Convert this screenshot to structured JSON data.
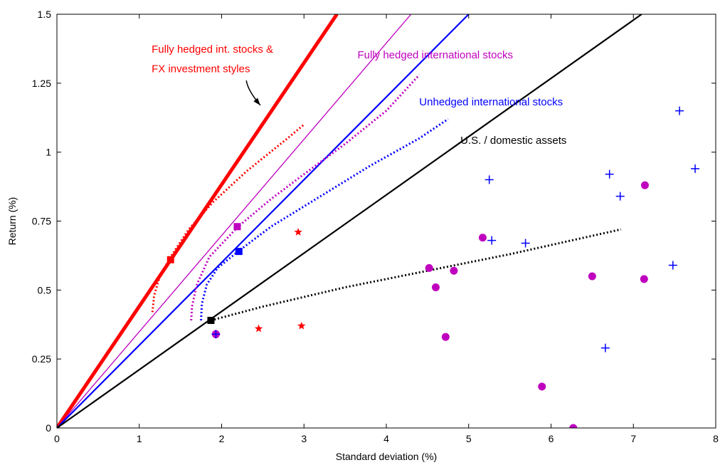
{
  "chart_data": {
    "type": "line",
    "xlabel": "Standard deviation (%)",
    "ylabel": "Return (%)",
    "xlim": [
      0,
      8
    ],
    "ylim": [
      0,
      1.5
    ],
    "xticks": [
      0,
      1,
      2,
      3,
      4,
      5,
      6,
      7,
      8
    ],
    "xtick_labels": [
      "0",
      "1",
      "2",
      "3",
      "4",
      "5",
      "6",
      "7",
      "8"
    ],
    "yticks": [
      0,
      0.25,
      0.5,
      0.75,
      1,
      1.25,
      1.5
    ],
    "ytick_labels": [
      "0",
      "0.25",
      "0.5",
      "0.75",
      "1",
      "1.25",
      "1.5"
    ],
    "grid": false,
    "legend": "none",
    "colors": {
      "red": "#ff0000",
      "magenta": "#bf00bf",
      "blue": "#0000ff",
      "black": "#000000"
    },
    "lines": [
      {
        "color": "#ff0000",
        "style": "solid",
        "width": "thick",
        "x": [
          0,
          3.4
        ],
        "y": [
          0,
          1.5
        ]
      },
      {
        "color": "#bf00bf",
        "style": "solid",
        "width": "thin",
        "x": [
          0,
          4.3
        ],
        "y": [
          0,
          1.5
        ]
      },
      {
        "color": "#0000ff",
        "style": "solid",
        "width": "medium",
        "x": [
          0,
          5.0
        ],
        "y": [
          0,
          1.5
        ]
      },
      {
        "color": "#000000",
        "style": "solid",
        "width": "medium",
        "x": [
          0,
          7.1
        ],
        "y": [
          0,
          1.5
        ]
      }
    ],
    "frontiers": [
      {
        "color": "#ff0000",
        "x": [
          1.16,
          1.18,
          1.25,
          1.38,
          1.6,
          1.9,
          2.3,
          2.8,
          3.0
        ],
        "y": [
          0.42,
          0.48,
          0.55,
          0.62,
          0.72,
          0.82,
          0.93,
          1.05,
          1.1
        ]
      },
      {
        "color": "#bf00bf",
        "x": [
          1.63,
          1.64,
          1.7,
          1.85,
          2.2,
          2.6,
          3.0,
          3.5,
          4.0,
          4.4
        ],
        "y": [
          0.39,
          0.44,
          0.52,
          0.62,
          0.73,
          0.83,
          0.92,
          1.03,
          1.15,
          1.28
        ]
      },
      {
        "color": "#0000ff",
        "x": [
          1.75,
          1.76,
          1.82,
          1.95,
          2.2,
          2.6,
          3.2,
          3.8,
          4.4,
          4.75
        ],
        "y": [
          0.39,
          0.45,
          0.52,
          0.58,
          0.64,
          0.73,
          0.84,
          0.95,
          1.05,
          1.12
        ]
      },
      {
        "color": "#000000",
        "x": [
          1.87,
          2.5,
          3.5,
          4.5,
          5.5,
          6.85
        ],
        "y": [
          0.39,
          0.44,
          0.51,
          0.57,
          0.63,
          0.72
        ]
      }
    ],
    "points": [
      {
        "marker": "square",
        "color": "#ff0000",
        "x": 1.38,
        "y": 0.61
      },
      {
        "marker": "square",
        "color": "#bf00bf",
        "x": 2.19,
        "y": 0.73
      },
      {
        "marker": "square",
        "color": "#0000ff",
        "x": 2.21,
        "y": 0.64
      },
      {
        "marker": "square",
        "color": "#000000",
        "x": 1.87,
        "y": 0.39
      },
      {
        "marker": "star",
        "color": "#ff0000",
        "x": 2.93,
        "y": 0.71
      },
      {
        "marker": "star",
        "color": "#ff0000",
        "x": 2.45,
        "y": 0.36
      },
      {
        "marker": "star",
        "color": "#ff0000",
        "x": 2.97,
        "y": 0.37
      },
      {
        "marker": "circle",
        "color": "#bf00bf",
        "x": 1.93,
        "y": 0.34
      },
      {
        "marker": "circle",
        "color": "#bf00bf",
        "x": 4.52,
        "y": 0.58
      },
      {
        "marker": "circle",
        "color": "#bf00bf",
        "x": 4.6,
        "y": 0.51
      },
      {
        "marker": "circle",
        "color": "#bf00bf",
        "x": 4.72,
        "y": 0.33
      },
      {
        "marker": "circle",
        "color": "#bf00bf",
        "x": 4.82,
        "y": 0.57
      },
      {
        "marker": "circle",
        "color": "#bf00bf",
        "x": 5.17,
        "y": 0.69
      },
      {
        "marker": "circle",
        "color": "#bf00bf",
        "x": 5.89,
        "y": 0.15
      },
      {
        "marker": "circle",
        "color": "#bf00bf",
        "x": 6.27,
        "y": 0.0
      },
      {
        "marker": "circle",
        "color": "#bf00bf",
        "x": 6.5,
        "y": 0.55
      },
      {
        "marker": "circle",
        "color": "#bf00bf",
        "x": 7.13,
        "y": 0.54
      },
      {
        "marker": "circle",
        "color": "#bf00bf",
        "x": 7.14,
        "y": 0.88
      },
      {
        "marker": "circle",
        "color": "#bf00bf",
        "x": 1.93,
        "y": 0.34
      },
      {
        "marker": "plus",
        "color": "#0000ff",
        "x": 1.93,
        "y": 0.34
      },
      {
        "marker": "plus",
        "color": "#0000ff",
        "x": 5.25,
        "y": 0.9
      },
      {
        "marker": "plus",
        "color": "#0000ff",
        "x": 5.28,
        "y": 0.68
      },
      {
        "marker": "plus",
        "color": "#0000ff",
        "x": 5.69,
        "y": 0.67
      },
      {
        "marker": "plus",
        "color": "#0000ff",
        "x": 6.66,
        "y": 0.29
      },
      {
        "marker": "plus",
        "color": "#0000ff",
        "x": 6.71,
        "y": 0.92
      },
      {
        "marker": "plus",
        "color": "#0000ff",
        "x": 6.84,
        "y": 0.84
      },
      {
        "marker": "plus",
        "color": "#0000ff",
        "x": 7.48,
        "y": 0.59
      },
      {
        "marker": "plus",
        "color": "#0000ff",
        "x": 7.56,
        "y": 1.15
      },
      {
        "marker": "plus",
        "color": "#0000ff",
        "x": 7.75,
        "y": 0.94
      }
    ],
    "annotations": [
      {
        "text": "Fully hedged int. stocks &",
        "color": "#ff0000",
        "x": 1.15,
        "y": 1.36
      },
      {
        "text": "FX investment styles",
        "color": "#ff0000",
        "x": 1.15,
        "y": 1.29
      },
      {
        "text": "Fully hedged international stocks",
        "color": "#bf00bf",
        "x": 3.65,
        "y": 1.34
      },
      {
        "text": "Unhedged international stocks",
        "color": "#0000ff",
        "x": 4.4,
        "y": 1.17
      },
      {
        "text": "U.S. / domestic assets",
        "color": "#000000",
        "x": 4.9,
        "y": 1.03
      }
    ],
    "arrow": {
      "color": "#000000",
      "from": [
        2.3,
        1.26
      ],
      "to": [
        2.47,
        1.17
      ]
    }
  }
}
